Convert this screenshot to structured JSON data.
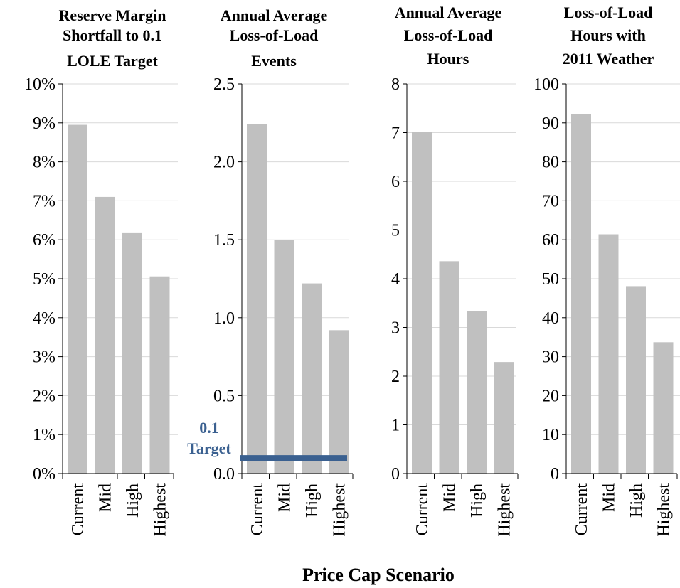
{
  "chart_data": [
    {
      "type": "bar",
      "title": "Reserve Margin Shortfall to 0.1 LOLE Target",
      "title_lines": [
        "Reserve Margin",
        "Shortfall to 0.1",
        "LOLE Target"
      ],
      "categories": [
        "Current",
        "Mid",
        "High",
        "Highest"
      ],
      "values": [
        8.95,
        7.1,
        6.17,
        5.06
      ],
      "ylim": [
        0,
        10
      ],
      "ticks": [
        "0%",
        "1%",
        "2%",
        "3%",
        "4%",
        "5%",
        "6%",
        "7%",
        "8%",
        "9%",
        "10%"
      ],
      "bar_color": "#c0c0c0",
      "grid": true
    },
    {
      "type": "bar",
      "title": "Annual Average Loss-of-Load Events",
      "title_lines": [
        "Annual Average",
        "Loss-of-Load",
        "Events"
      ],
      "categories": [
        "Current",
        "Mid",
        "High",
        "Highest"
      ],
      "values": [
        2.24,
        1.5,
        1.22,
        0.92
      ],
      "ylim": [
        0,
        2.5
      ],
      "ticks": [
        "0.0",
        "0.5",
        "1.0",
        "1.5",
        "2.0",
        "2.5"
      ],
      "bar_color": "#c0c0c0",
      "grid": true,
      "target_line": {
        "value": 0.1,
        "label_lines": [
          "0.1",
          "Target"
        ],
        "color": "#3a6090"
      }
    },
    {
      "type": "bar",
      "title": "Annual Average Loss-of-Load Hours",
      "title_lines": [
        "Annual Average",
        "Loss-of-Load",
        "Hours"
      ],
      "categories": [
        "Current",
        "Mid",
        "High",
        "Highest"
      ],
      "values": [
        7.02,
        4.36,
        3.33,
        2.29
      ],
      "ylim": [
        0,
        8
      ],
      "ticks": [
        "0",
        "1",
        "2",
        "3",
        "4",
        "5",
        "6",
        "7",
        "8"
      ],
      "bar_color": "#c0c0c0",
      "grid": true
    },
    {
      "type": "bar",
      "title": "Loss-of-Load Hours with 2011 Weather",
      "title_lines": [
        "Loss-of-Load",
        "Hours with",
        "2011 Weather"
      ],
      "categories": [
        "Current",
        "Mid",
        "High",
        "Highest"
      ],
      "values": [
        92.2,
        61.4,
        48.1,
        33.7
      ],
      "ylim": [
        0,
        100
      ],
      "ticks": [
        "0",
        "10",
        "20",
        "30",
        "40",
        "50",
        "60",
        "70",
        "80",
        "90",
        "100"
      ],
      "bar_color": "#c0c0c0",
      "grid": true
    }
  ],
  "shared_xlabel": "Price Cap Scenario"
}
